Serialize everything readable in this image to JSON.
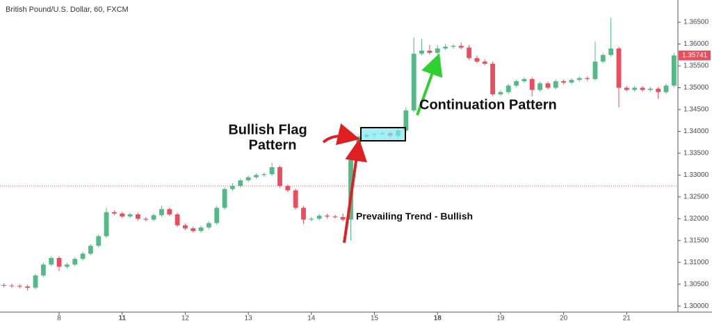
{
  "chart_data": {
    "type": "candlestick",
    "title": "British Pound/U.S. Dollar, 60, FXCM",
    "annotations": {
      "flag_line1": "Bullish Flag",
      "flag_line2": "Pattern",
      "continuation": "Continuation Pattern",
      "trend": "Prevailing Trend - Bullish"
    },
    "categories": [
      null,
      null,
      null,
      null,
      null,
      null,
      null,
      "8",
      null,
      null,
      null,
      null,
      null,
      null,
      null,
      "11",
      null,
      null,
      null,
      null,
      null,
      null,
      null,
      "12",
      null,
      null,
      null,
      null,
      null,
      null,
      null,
      "13",
      null,
      null,
      null,
      null,
      null,
      null,
      null,
      "14",
      null,
      null,
      null,
      null,
      null,
      null,
      null,
      "15",
      null,
      null,
      null,
      null,
      null,
      null,
      null,
      "18",
      null,
      null,
      null,
      null,
      null,
      null,
      null,
      "19",
      null,
      null,
      null,
      null,
      null,
      null,
      null,
      "20",
      null,
      null,
      null,
      null,
      null,
      null,
      null,
      "21",
      null,
      null,
      null,
      null,
      null,
      null
    ],
    "bold_categories": [
      15,
      55
    ],
    "open": [
      1.3048,
      1.3047,
      1.3046,
      1.3045,
      1.3042,
      1.307,
      1.3095,
      1.311,
      1.309,
      1.3095,
      1.3108,
      1.312,
      1.3138,
      1.316,
      1.3215,
      1.3212,
      1.3205,
      1.321,
      1.32,
      1.3198,
      1.3208,
      1.3222,
      1.321,
      1.3185,
      1.3178,
      1.3172,
      1.318,
      1.319,
      1.3225,
      1.3268,
      1.3275,
      1.3288,
      1.3295,
      1.33,
      1.3302,
      1.3318,
      1.3275,
      1.3265,
      1.3225,
      1.3198,
      1.32,
      1.3207,
      1.3205,
      1.3204,
      1.3198,
      1.3335,
      1.3388,
      1.3392,
      1.3394,
      1.3396,
      1.339,
      1.3402,
      1.3448,
      1.3578,
      1.3585,
      1.358,
      1.359,
      1.3594,
      1.3596,
      1.3592,
      1.3568,
      1.356,
      1.3555,
      1.3485,
      1.349,
      1.3505,
      1.3515,
      1.352,
      1.3495,
      1.351,
      1.35,
      1.3515,
      1.3512,
      1.3518,
      1.3522,
      1.352,
      1.356,
      1.3575,
      1.359,
      1.35,
      1.3495,
      1.35,
      1.3495,
      1.3498,
      1.349,
      1.3505
    ],
    "high": [
      1.3052,
      1.3051,
      1.305,
      1.3049,
      1.3074,
      1.3099,
      1.3114,
      1.3114,
      1.3099,
      1.3112,
      1.3124,
      1.3142,
      1.3164,
      1.3225,
      1.3219,
      1.3216,
      1.3214,
      1.3214,
      1.3204,
      1.3212,
      1.323,
      1.3226,
      1.3214,
      1.3189,
      1.3182,
      1.3184,
      1.3194,
      1.3229,
      1.3272,
      1.3282,
      1.3292,
      1.3299,
      1.3304,
      1.3306,
      1.3328,
      1.3322,
      1.3279,
      1.3269,
      1.3229,
      1.3204,
      1.3211,
      1.3211,
      1.3209,
      1.3212,
      1.334,
      1.3392,
      1.3396,
      1.3398,
      1.34,
      1.34,
      1.3406,
      1.3455,
      1.3615,
      1.3612,
      1.3598,
      1.3598,
      1.36,
      1.36,
      1.3604,
      1.3598,
      1.3574,
      1.3565,
      1.356,
      1.3494,
      1.3509,
      1.3519,
      1.3524,
      1.3524,
      1.3514,
      1.3514,
      1.3519,
      1.3519,
      1.3522,
      1.3526,
      1.3526,
      1.3605,
      1.3579,
      1.366,
      1.3594,
      1.3504,
      1.3504,
      1.3504,
      1.3502,
      1.3502,
      1.3509,
      1.358
    ],
    "low": [
      1.3043,
      1.3042,
      1.3041,
      1.3035,
      1.3038,
      1.3066,
      1.3091,
      1.308,
      1.3086,
      1.3091,
      1.3104,
      1.3116,
      1.3134,
      1.3156,
      1.3208,
      1.3201,
      1.3201,
      1.3196,
      1.3194,
      1.3194,
      1.3204,
      1.3206,
      1.3181,
      1.3174,
      1.3168,
      1.3168,
      1.3176,
      1.3186,
      1.3221,
      1.3264,
      1.3271,
      1.3284,
      1.3291,
      1.3296,
      1.3298,
      1.3271,
      1.3261,
      1.3221,
      1.3188,
      1.3194,
      1.3196,
      1.3201,
      1.32,
      1.3194,
      1.315,
      1.3331,
      1.3384,
      1.3388,
      1.339,
      1.3386,
      1.3386,
      1.3398,
      1.3444,
      1.3574,
      1.3576,
      1.3576,
      1.3586,
      1.359,
      1.3588,
      1.3564,
      1.3556,
      1.3551,
      1.3481,
      1.3481,
      1.3486,
      1.3501,
      1.3511,
      1.348,
      1.3491,
      1.3496,
      1.3496,
      1.3508,
      1.3508,
      1.3514,
      1.3516,
      1.3516,
      1.3556,
      1.3571,
      1.3455,
      1.3491,
      1.3491,
      1.3491,
      1.3491,
      1.3475,
      1.3486,
      1.3501
    ],
    "close": [
      1.3047,
      1.3046,
      1.3045,
      1.3042,
      1.307,
      1.3095,
      1.311,
      1.309,
      1.3095,
      1.3108,
      1.312,
      1.3138,
      1.316,
      1.3215,
      1.3212,
      1.3205,
      1.321,
      1.32,
      1.3198,
      1.3208,
      1.3222,
      1.321,
      1.3185,
      1.3178,
      1.3172,
      1.318,
      1.319,
      1.3225,
      1.3268,
      1.3275,
      1.3288,
      1.3295,
      1.33,
      1.3302,
      1.3318,
      1.3275,
      1.3265,
      1.3225,
      1.3198,
      1.32,
      1.3207,
      1.3205,
      1.3204,
      1.3198,
      1.3335,
      1.3388,
      1.3392,
      1.3394,
      1.3396,
      1.339,
      1.3402,
      1.3448,
      1.3578,
      1.3585,
      1.358,
      1.359,
      1.3594,
      1.3596,
      1.3592,
      1.3568,
      1.356,
      1.3555,
      1.3485,
      1.349,
      1.3505,
      1.3515,
      1.352,
      1.3495,
      1.351,
      1.35,
      1.3515,
      1.3512,
      1.3518,
      1.3522,
      1.352,
      1.356,
      1.3575,
      1.359,
      1.35,
      1.3495,
      1.35,
      1.3495,
      1.3498,
      1.349,
      1.3505,
      1.3574
    ],
    "up_color": "#53b987",
    "down_color": "#eb4d5c",
    "ylim": [
      1.2986,
      1.3701
    ],
    "yticks": [
      {
        "value": 1.3,
        "label": "1.30000"
      },
      {
        "value": 1.305,
        "label": "1.30500"
      },
      {
        "value": 1.31,
        "label": "1.31000"
      },
      {
        "value": 1.315,
        "label": "1.31500"
      },
      {
        "value": 1.32,
        "label": "1.32000"
      },
      {
        "value": 1.325,
        "label": "1.32500"
      },
      {
        "value": 1.33,
        "label": "1.33000"
      },
      {
        "value": 1.335,
        "label": "1.33500"
      },
      {
        "value": 1.34,
        "label": "1.34000"
      },
      {
        "value": 1.345,
        "label": "1.34500"
      },
      {
        "value": 1.35,
        "label": "1.35000"
      },
      {
        "value": 1.355,
        "label": "1.35500"
      },
      {
        "value": 1.36,
        "label": "1.36000"
      },
      {
        "value": 1.365,
        "label": "1.36500"
      }
    ],
    "last_price": {
      "value": 1.35741,
      "label": "1.35741"
    },
    "reference_line": 1.3275,
    "grid": false
  }
}
